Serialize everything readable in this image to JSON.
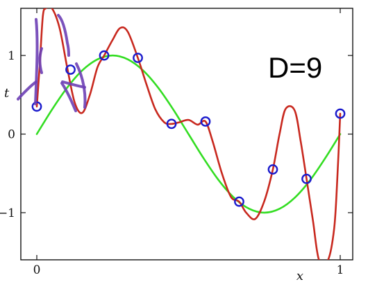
{
  "chart_data": {
    "type": "scatter",
    "xlabel": "x",
    "ylabel": "t",
    "xlim": [
      0,
      1
    ],
    "ylim": [
      -1.6,
      1.6
    ],
    "x_ticks": [
      0,
      1
    ],
    "x_tick_labels": [
      "0",
      "1"
    ],
    "y_ticks": [
      1,
      0,
      -1
    ],
    "y_tick_labels": [
      "1",
      "0",
      "−1"
    ],
    "annotation": "D=9",
    "grid": false,
    "series": [
      {
        "kind": "points",
        "color": "#1a1acc",
        "x": [
          0.0,
          0.111,
          0.222,
          0.333,
          0.444,
          0.556,
          0.667,
          0.778,
          0.889,
          1.0
        ],
        "y": [
          0.35,
          0.82,
          1.0,
          0.97,
          0.13,
          0.16,
          -0.86,
          -0.45,
          -0.57,
          0.26
        ]
      },
      {
        "kind": "line",
        "color": "#33dd22",
        "x": [
          0.0,
          0.05,
          0.1,
          0.15,
          0.2,
          0.25,
          0.3,
          0.35,
          0.4,
          0.45,
          0.5,
          0.55,
          0.6,
          0.65,
          0.7,
          0.75,
          0.8,
          0.85,
          0.9,
          0.95,
          1.0
        ],
        "y": [
          0.0,
          0.31,
          0.59,
          0.81,
          0.95,
          1.0,
          0.95,
          0.81,
          0.59,
          0.31,
          0.0,
          -0.31,
          -0.59,
          -0.81,
          -0.95,
          -1.0,
          -0.95,
          -0.81,
          -0.59,
          -0.31,
          0.0
        ]
      },
      {
        "kind": "line",
        "color": "#c8281e",
        "x": [
          0.0,
          0.01,
          0.02,
          0.03,
          0.05,
          0.075,
          0.1,
          0.125,
          0.15,
          0.175,
          0.2,
          0.222,
          0.25,
          0.275,
          0.3,
          0.333,
          0.36,
          0.39,
          0.42,
          0.444,
          0.47,
          0.5,
          0.53,
          0.556,
          0.58,
          0.61,
          0.64,
          0.667,
          0.69,
          0.72,
          0.75,
          0.778,
          0.8,
          0.82,
          0.85,
          0.87,
          0.889,
          0.91,
          0.93,
          0.96,
          0.98,
          0.99,
          1.0
        ],
        "y": [
          0.35,
          0.9,
          1.5,
          1.6,
          1.6,
          1.35,
          0.85,
          0.4,
          0.27,
          0.5,
          0.85,
          1.0,
          1.2,
          1.35,
          1.3,
          0.97,
          0.65,
          0.32,
          0.15,
          0.13,
          0.15,
          0.18,
          0.12,
          0.16,
          -0.1,
          -0.5,
          -0.8,
          -0.86,
          -1.0,
          -1.08,
          -0.85,
          -0.45,
          0.0,
          0.32,
          0.3,
          -0.1,
          -0.57,
          -1.1,
          -1.6,
          -1.6,
          -1.2,
          -0.6,
          0.26
        ]
      }
    ]
  }
}
